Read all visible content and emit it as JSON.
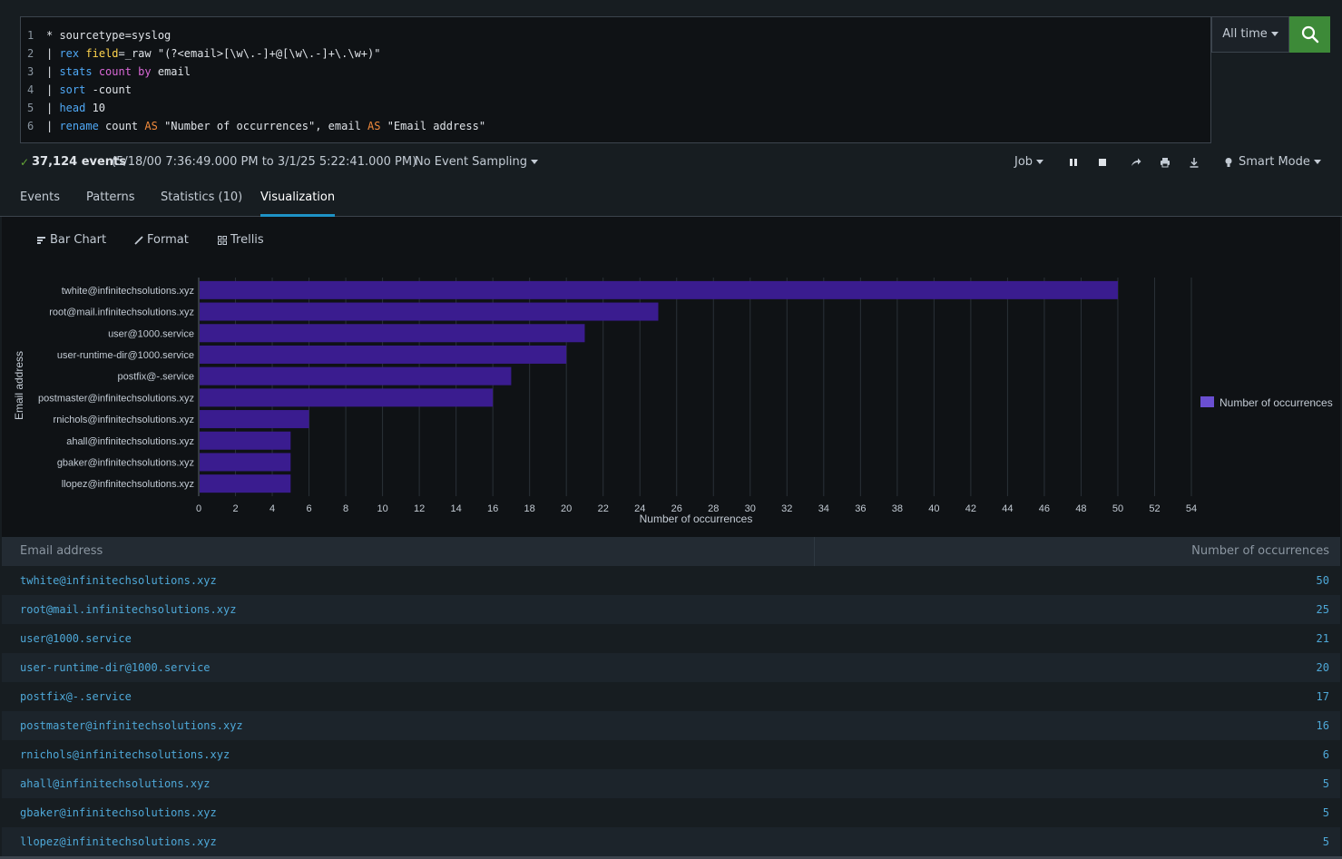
{
  "search": {
    "lines": [
      {
        "num": "1",
        "tokens": [
          {
            "t": "* sourcetype=syslog",
            "c": "plain"
          }
        ]
      },
      {
        "num": "2",
        "tokens": [
          {
            "t": "| ",
            "c": "plain"
          },
          {
            "t": "rex",
            "c": "cmd"
          },
          {
            "t": " ",
            "c": "plain"
          },
          {
            "t": "field",
            "c": "arg"
          },
          {
            "t": "=_raw \"(?<email>[\\w\\.-]+@[\\w\\.-]+\\.\\w+)\"",
            "c": "plain"
          }
        ]
      },
      {
        "num": "3",
        "tokens": [
          {
            "t": "| ",
            "c": "plain"
          },
          {
            "t": "stats",
            "c": "cmd"
          },
          {
            "t": " ",
            "c": "plain"
          },
          {
            "t": "count",
            "c": "fn"
          },
          {
            "t": " ",
            "c": "plain"
          },
          {
            "t": "by",
            "c": "fn"
          },
          {
            "t": " email",
            "c": "plain"
          }
        ]
      },
      {
        "num": "4",
        "tokens": [
          {
            "t": "| ",
            "c": "plain"
          },
          {
            "t": "sort",
            "c": "cmd"
          },
          {
            "t": " -count",
            "c": "plain"
          }
        ]
      },
      {
        "num": "5",
        "tokens": [
          {
            "t": "| ",
            "c": "plain"
          },
          {
            "t": "head",
            "c": "cmd"
          },
          {
            "t": " 10",
            "c": "plain"
          }
        ]
      },
      {
        "num": "6",
        "tokens": [
          {
            "t": "| ",
            "c": "plain"
          },
          {
            "t": "rename",
            "c": "cmd"
          },
          {
            "t": " count ",
            "c": "plain"
          },
          {
            "t": "AS",
            "c": "kw"
          },
          {
            "t": " \"Number of occurrences\", email ",
            "c": "plain"
          },
          {
            "t": "AS",
            "c": "kw"
          },
          {
            "t": " \"Email address\"",
            "c": "plain"
          }
        ]
      }
    ],
    "time_range": "All time"
  },
  "status": {
    "check": "✓",
    "event_count": "37,124 events",
    "range": "(5/18/00 7:36:49.000 PM to 3/1/25 5:22:41.000 PM)",
    "sampling": "No Event Sampling",
    "job": "Job",
    "mode": "Smart Mode"
  },
  "tabs": [
    "Events",
    "Patterns",
    "Statistics (10)",
    "Visualization"
  ],
  "viz_toolbar": {
    "chart": "Bar Chart",
    "format": "Format",
    "trellis": "Trellis"
  },
  "colors": {
    "bar": "#3a1c8f",
    "legend": "#6a4fd1",
    "accent": "#1e93c6",
    "search_button": "#3d8a38"
  },
  "chart_data": {
    "type": "bar",
    "orientation": "horizontal",
    "categories": [
      "twhite@infinitechsolutions.xyz",
      "root@mail.infinitechsolutions.xyz",
      "user@1000.service",
      "user-runtime-dir@1000.service",
      "postfix@-.service",
      "postmaster@infinitechsolutions.xyz",
      "rnichols@infinitechsolutions.xyz",
      "ahall@infinitechsolutions.xyz",
      "gbaker@infinitechsolutions.xyz",
      "llopez@infinitechsolutions.xyz"
    ],
    "series": [
      {
        "name": "Number of occurrences",
        "values": [
          50,
          25,
          21,
          20,
          17,
          16,
          6,
          5,
          5,
          5
        ]
      }
    ],
    "xlabel": "Number of occurrences",
    "ylabel": "Email address",
    "xlim": [
      0,
      54
    ],
    "xticks": [
      0,
      2,
      4,
      6,
      8,
      10,
      12,
      14,
      16,
      18,
      20,
      22,
      24,
      26,
      28,
      30,
      32,
      34,
      36,
      38,
      40,
      42,
      44,
      46,
      48,
      50,
      52,
      54
    ],
    "grid": true,
    "legend": "right"
  },
  "table": {
    "headers": [
      "Email address",
      "Number of occurrences"
    ],
    "rows": [
      {
        "email": "twhite@infinitechsolutions.xyz",
        "count": "50"
      },
      {
        "email": "root@mail.infinitechsolutions.xyz",
        "count": "25"
      },
      {
        "email": "user@1000.service",
        "count": "21"
      },
      {
        "email": "user-runtime-dir@1000.service",
        "count": "20"
      },
      {
        "email": "postfix@-.service",
        "count": "17"
      },
      {
        "email": "postmaster@infinitechsolutions.xyz",
        "count": "16"
      },
      {
        "email": "rnichols@infinitechsolutions.xyz",
        "count": "6"
      },
      {
        "email": "ahall@infinitechsolutions.xyz",
        "count": "5"
      },
      {
        "email": "gbaker@infinitechsolutions.xyz",
        "count": "5"
      },
      {
        "email": "llopez@infinitechsolutions.xyz",
        "count": "5"
      }
    ]
  }
}
